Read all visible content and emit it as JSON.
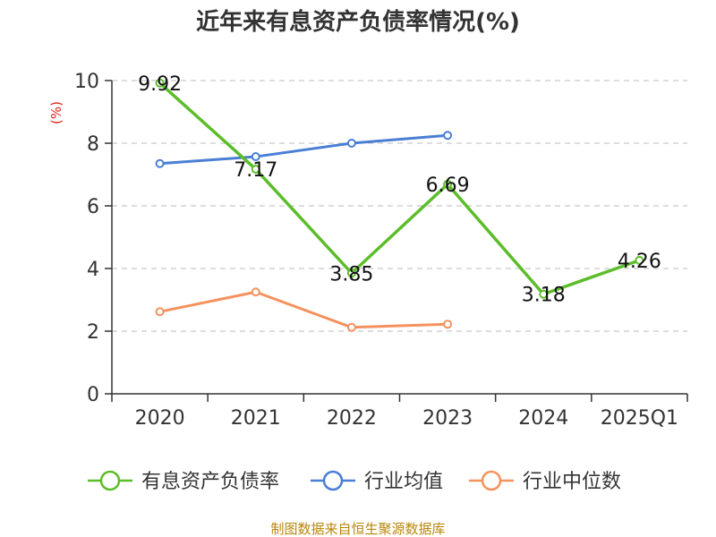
{
  "chart_data": {
    "type": "line",
    "title": "近年来有息资产负债率情况(%)",
    "ylabel": "(%)",
    "ylim": [
      0,
      10
    ],
    "yticks": [
      0,
      2,
      4,
      6,
      8,
      10
    ],
    "categories": [
      "2020",
      "2021",
      "2022",
      "2023",
      "2024",
      "2025Q1"
    ],
    "grid": true,
    "legend_position": "bottom",
    "series": [
      {
        "name": "有息资产负债率",
        "color": "#5cbd2a",
        "values": [
          9.92,
          7.17,
          3.85,
          6.69,
          3.18,
          4.26
        ],
        "labels": [
          "9.92",
          "7.17",
          "3.85",
          "6.69",
          "3.18",
          "4.26"
        ]
      },
      {
        "name": "行业均值",
        "color": "#4a7fd4",
        "values": [
          7.35,
          7.57,
          8.0,
          8.25,
          null,
          null
        ]
      },
      {
        "name": "行业中位数",
        "color": "#f4925e",
        "values": [
          2.62,
          3.25,
          2.12,
          2.22,
          null,
          null
        ]
      }
    ]
  },
  "source": "制图数据来自恒生聚源数据库"
}
